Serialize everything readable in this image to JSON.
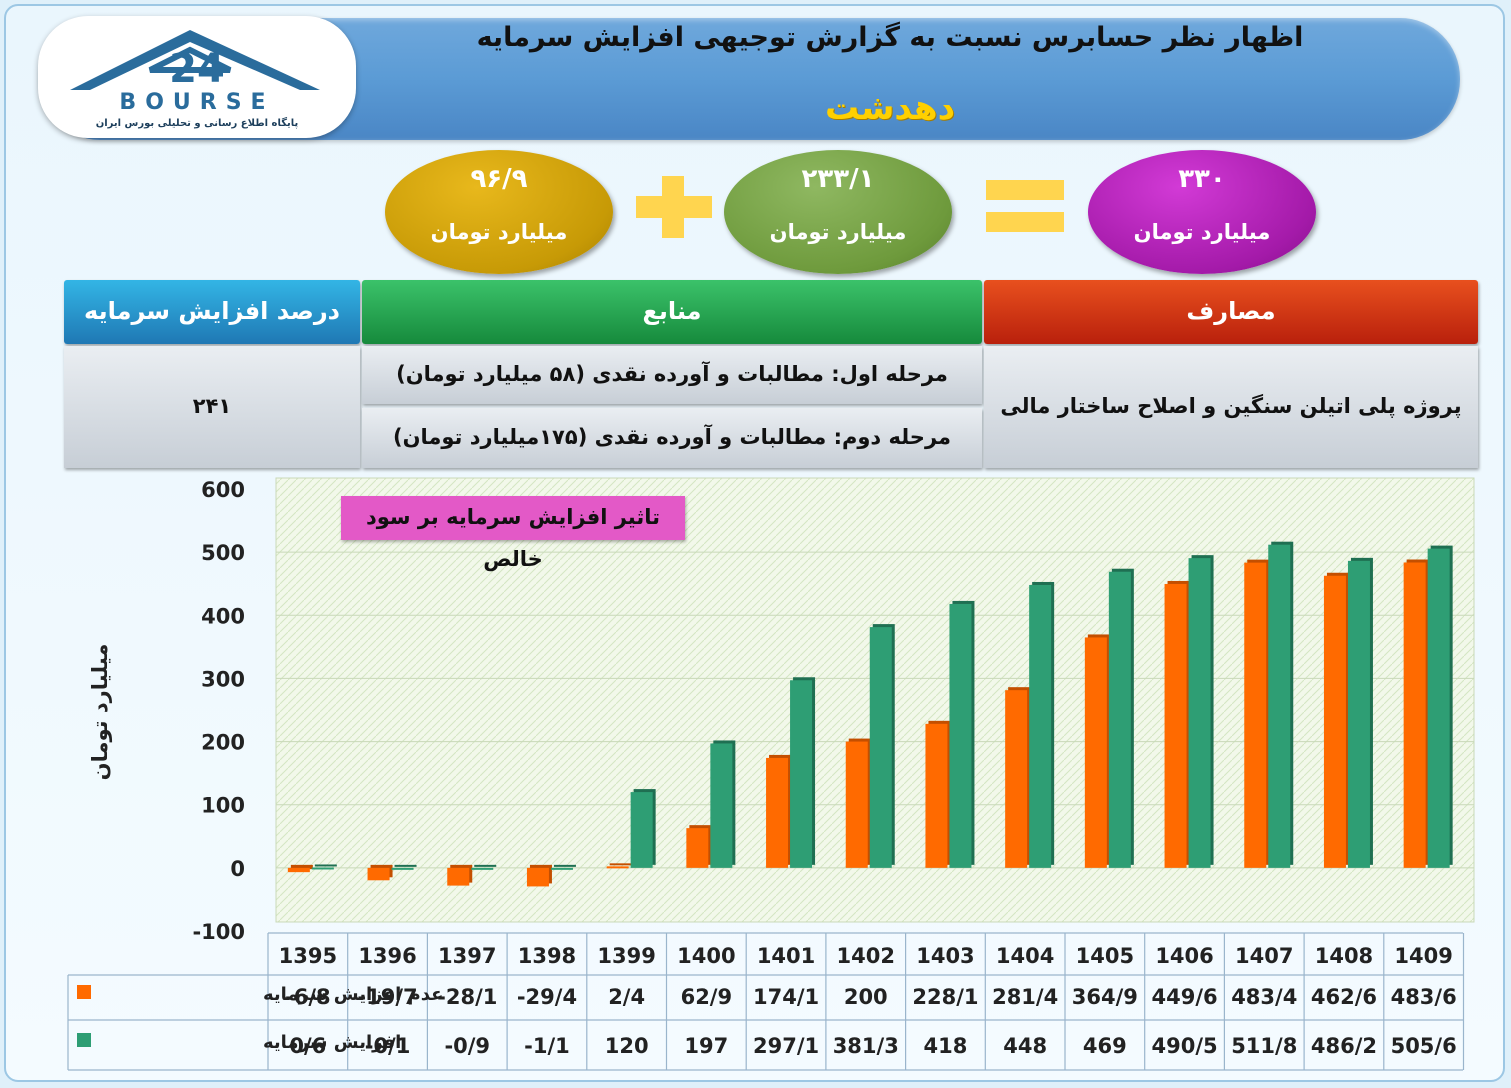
{
  "header": {
    "title": "اظهار نظر حسابرس نسبت به گزارش توجیهی افزایش سرمایه",
    "company": "دهدشت"
  },
  "logo": {
    "text": "BOURSE",
    "subtitle": "پایگاه اطلاع رسانی و تحلیلی بورس ایران",
    "number": "24"
  },
  "equation": {
    "left_value": "۹۶/۹",
    "middle_value": "۲۳۳/۱",
    "right_value": "۳۳۰",
    "unit": "میلیارد تومان",
    "colors": {
      "gold": "#c79a06",
      "green": "#6e9a3c",
      "purple": "#a41aa9",
      "operator": "#ffd54f"
    }
  },
  "table": {
    "header_percent": "درصد افزایش سرمایه",
    "header_sources": "منابع",
    "header_costs": "مصارف",
    "percent_value": "۲۴۱",
    "source_stage1": "مرحله اول: مطالبات و آورده نقدی (۵۸ میلیارد تومان)",
    "source_stage2": "مرحله دوم: مطالبات و آورده نقدی (۱۷۵میلیارد تومان)",
    "cost_text": "پروژه پلی اتیلن سنگین و اصلاح ساختار مالی"
  },
  "chart_data": {
    "type": "bar",
    "annotation": "تاثیر افزایش سرمایه بر سود خالص",
    "ylabel": "میلیارد تومان",
    "ylim": [
      -100,
      600
    ],
    "yticks": [
      600,
      500,
      400,
      300,
      200,
      100,
      0,
      -100
    ],
    "grid": true,
    "categories": [
      "1395",
      "1396",
      "1397",
      "1398",
      "1399",
      "1400",
      "1401",
      "1402",
      "1403",
      "1404",
      "1405",
      "1406",
      "1407",
      "1408",
      "1409"
    ],
    "series": [
      {
        "name": "عدم افزایش سرمایه",
        "color": "#ff6a00",
        "values": [
          -6.8,
          -19.7,
          -28.1,
          -29.4,
          2.4,
          62.9,
          174.1,
          200,
          228.1,
          281.4,
          364.9,
          449.6,
          483.4,
          462.6,
          483.6
        ],
        "labels": [
          "-6/8",
          "-19/7",
          "-28/1",
          "-29/4",
          "2/4",
          "62/9",
          "174/1",
          "200",
          "228/1",
          "281/4",
          "364/9",
          "449/6",
          "483/4",
          "462/6",
          "483/6"
        ]
      },
      {
        "name": "افزایش سرمایه",
        "color": "#2e9e74",
        "values": [
          0.6,
          -0.1,
          -0.9,
          -1.1,
          120,
          197,
          297.1,
          381.3,
          418,
          448,
          469,
          490.5,
          511.8,
          486.2,
          505.6
        ],
        "labels": [
          "0/6",
          "-0/1",
          "-0/9",
          "-1/1",
          "120",
          "197",
          "297/1",
          "381/3",
          "418",
          "448",
          "469",
          "490/5",
          "511/8",
          "486/2",
          "505/6"
        ]
      }
    ]
  }
}
